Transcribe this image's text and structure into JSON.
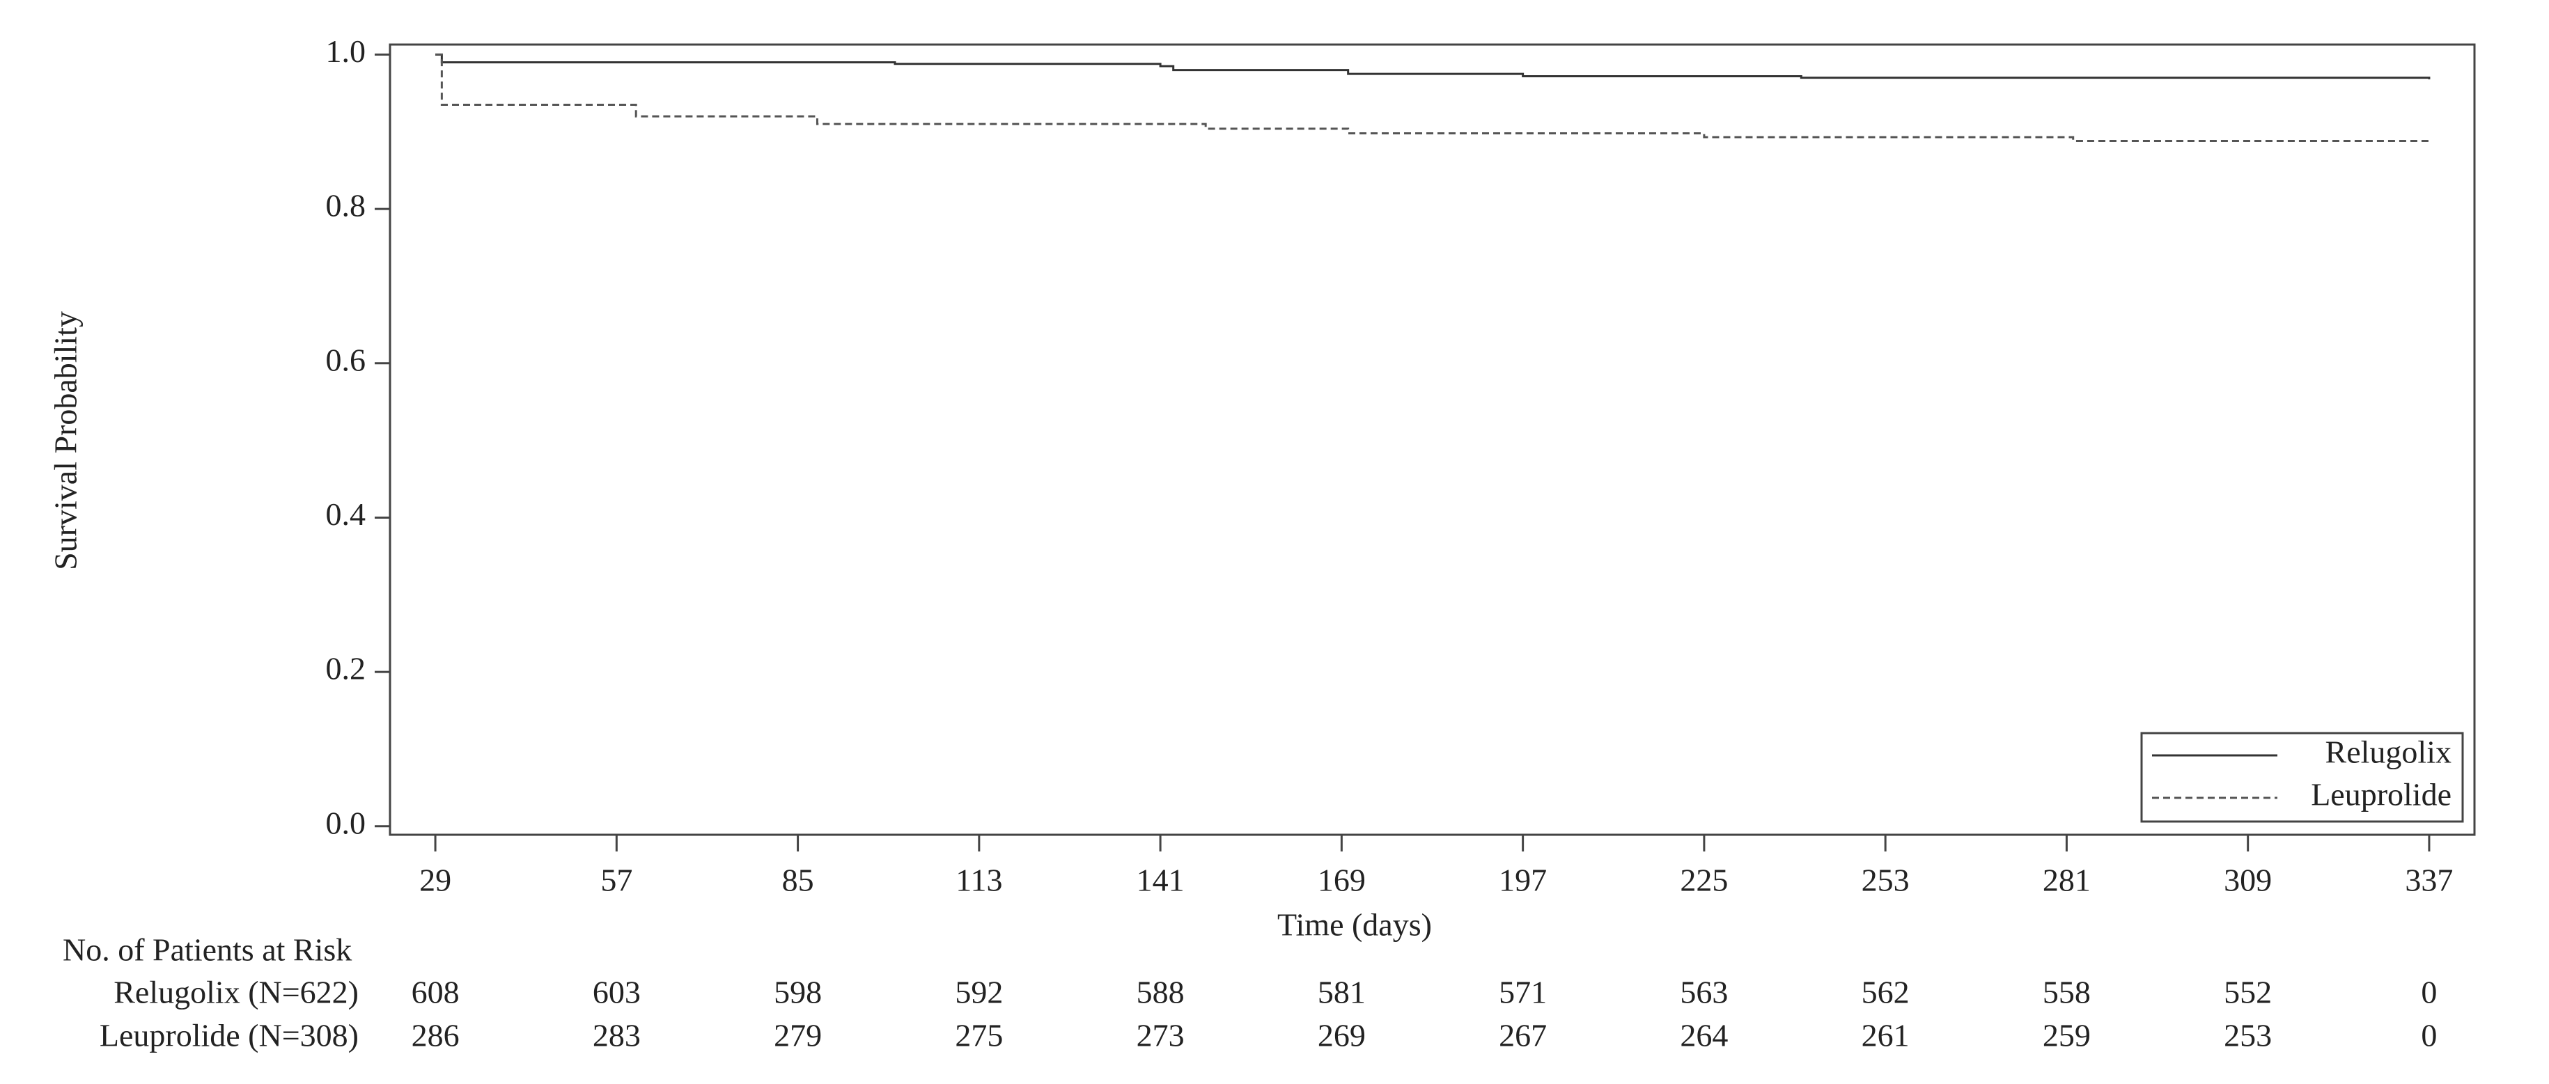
{
  "chart_data": {
    "type": "line",
    "step": "post",
    "y_label": "Survival Probability",
    "x_label": "Time (days)",
    "xlim": [
      22,
      344
    ],
    "xticks": [
      29,
      57,
      85,
      113,
      141,
      169,
      197,
      225,
      253,
      281,
      309,
      337
    ],
    "ylim": [
      -0.011,
      1.013
    ],
    "yticks": [
      {
        "value": 0,
        "label": "0.0"
      },
      0.2,
      0.4,
      0.6,
      0.8,
      {
        "value": 1,
        "label": "1.0"
      }
    ],
    "legend": "lower right",
    "series": [
      {
        "name": "Relugolix",
        "color": "#333333",
        "dash": "solid",
        "x": [
          29,
          30,
          100,
          141,
          143,
          170,
          197,
          240,
          337
        ],
        "values": [
          1.0,
          0.99,
          0.988,
          0.985,
          0.98,
          0.975,
          0.972,
          0.97,
          0.968
        ]
      },
      {
        "name": "Leuprolide",
        "color": "#555555",
        "dash": "dashed",
        "x": [
          29,
          30,
          60,
          88,
          148,
          170,
          225,
          282,
          337
        ],
        "values": [
          1.0,
          0.935,
          0.92,
          0.91,
          0.904,
          0.898,
          0.893,
          0.888,
          0.885
        ]
      }
    ],
    "risk_table": {
      "title": "No. of Patients at Risk",
      "rows": [
        {
          "name": "Relugolix (N=622)",
          "values": [
            608,
            603,
            598,
            592,
            588,
            581,
            571,
            563,
            562,
            558,
            552,
            0
          ]
        },
        {
          "name": "Leuprolide (N=308)",
          "values": [
            286,
            283,
            279,
            275,
            273,
            269,
            267,
            264,
            261,
            259,
            253,
            0
          ]
        }
      ]
    }
  }
}
